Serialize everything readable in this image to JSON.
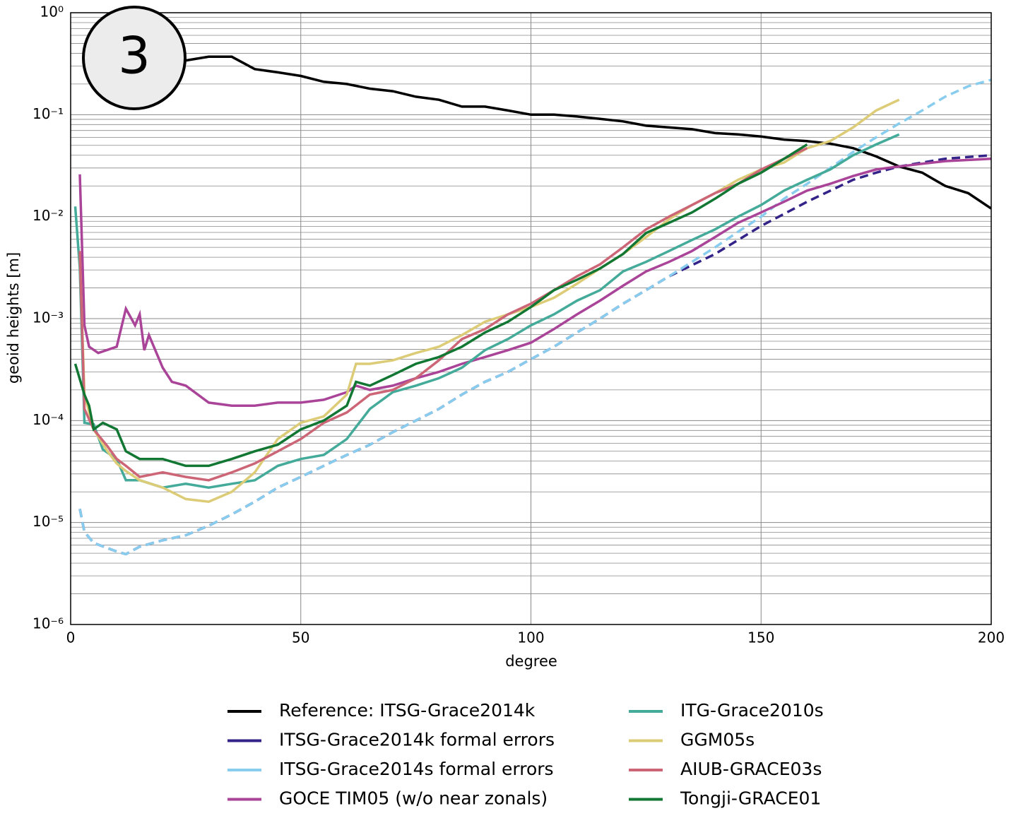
{
  "chart_data": {
    "type": "line",
    "annotation": "3",
    "x_label": "degree",
    "y_label": "geoid heights [m]",
    "xlim": [
      0,
      200
    ],
    "xticks": [
      0,
      50,
      100,
      150,
      200
    ],
    "ylim": [
      1e-06,
      1
    ],
    "yticks": [
      {
        "value": 1e-06,
        "label": "10⁻⁶"
      },
      {
        "value": 1e-05,
        "label": "10⁻⁵"
      },
      {
        "value": 0.0001,
        "label": "10⁻⁴"
      },
      {
        "value": 0.001,
        "label": "10⁻³"
      },
      {
        "value": 0.01,
        "label": "10⁻²"
      },
      {
        "value": 0.1,
        "label": "10⁻¹"
      },
      {
        "value": 1,
        "label": "10⁰"
      }
    ],
    "log_y": true,
    "grid": true,
    "minor_grid": true,
    "legend": "bottom",
    "series": [
      {
        "name": "Reference: ITSG-Grace2014k",
        "color": "#000000",
        "dashed": false,
        "x": [
          25,
          30,
          35,
          40,
          45,
          50,
          55,
          60,
          65,
          70,
          75,
          80,
          85,
          90,
          95,
          100,
          105,
          110,
          115,
          120,
          125,
          130,
          135,
          140,
          145,
          150,
          155,
          160,
          165,
          170,
          175,
          180,
          185,
          190,
          195,
          200
        ],
        "values": [
          0.34,
          0.37,
          0.37,
          0.28,
          0.26,
          0.24,
          0.21,
          0.2,
          0.18,
          0.17,
          0.15,
          0.14,
          0.12,
          0.12,
          0.11,
          0.1,
          0.1,
          0.096,
          0.091,
          0.086,
          0.078,
          0.075,
          0.072,
          0.066,
          0.064,
          0.061,
          0.057,
          0.055,
          0.052,
          0.047,
          0.039,
          0.031,
          0.027,
          0.02,
          0.017,
          0.012
        ]
      },
      {
        "name": "ITSG-Grace2014k formal errors",
        "color": "#332288",
        "dashed": true,
        "x": [
          2,
          3,
          5,
          10,
          12,
          15,
          20,
          25,
          30,
          35,
          40,
          45,
          50,
          55,
          60,
          65,
          70,
          75,
          80,
          85,
          90,
          95,
          100,
          105,
          110,
          115,
          120,
          125,
          130,
          140,
          150,
          160,
          170,
          175,
          180,
          190,
          200
        ],
        "values": [
          1.36e-05,
          8.1e-06,
          6.3e-06,
          5.2e-06,
          4.9e-06,
          5.8e-06,
          6.7e-06,
          7.5e-06,
          9.3e-06,
          1.2e-05,
          1.6e-05,
          2.2e-05,
          2.8e-05,
          3.6e-05,
          4.6e-05,
          5.8e-05,
          7.7e-05,
          0.0001,
          0.00013,
          0.00018,
          0.00024,
          0.0003,
          0.0004,
          0.00053,
          0.00073,
          0.001,
          0.0014,
          0.0019,
          0.0026,
          0.0043,
          0.0081,
          0.014,
          0.023,
          0.027,
          0.031,
          0.037,
          0.04
        ]
      },
      {
        "name": "ITSG-Grace2014s formal errors",
        "color": "#88ccee",
        "dashed": true,
        "x": [
          2,
          3,
          5,
          10,
          12,
          15,
          20,
          25,
          30,
          35,
          40,
          45,
          50,
          55,
          60,
          65,
          70,
          75,
          80,
          85,
          90,
          95,
          100,
          105,
          110,
          115,
          120,
          125,
          130,
          135,
          140,
          145,
          150,
          155,
          160,
          165,
          170,
          175,
          180,
          185,
          190,
          195,
          200
        ],
        "values": [
          1.36e-05,
          8.1e-06,
          6.3e-06,
          5.2e-06,
          4.9e-06,
          5.8e-06,
          6.7e-06,
          7.5e-06,
          9.3e-06,
          1.2e-05,
          1.6e-05,
          2.2e-05,
          2.8e-05,
          3.6e-05,
          4.6e-05,
          5.8e-05,
          7.7e-05,
          0.0001,
          0.00013,
          0.00018,
          0.00024,
          0.0003,
          0.0004,
          0.00053,
          0.00073,
          0.001,
          0.0014,
          0.0019,
          0.0026,
          0.0036,
          0.005,
          0.0071,
          0.01,
          0.015,
          0.021,
          0.03,
          0.043,
          0.06,
          0.082,
          0.11,
          0.15,
          0.19,
          0.22
        ]
      },
      {
        "name": "GOCE TIM05 (w/o near zonals)",
        "color": "#aa4499",
        "dashed": false,
        "x": [
          2,
          3,
          4,
          6,
          10,
          12,
          14,
          15,
          16,
          17,
          20,
          22,
          25,
          30,
          35,
          40,
          45,
          50,
          55,
          60,
          62,
          65,
          70,
          75,
          80,
          85,
          90,
          95,
          100,
          105,
          110,
          115,
          120,
          125,
          130,
          135,
          140,
          145,
          150,
          155,
          160,
          165,
          170,
          175,
          180,
          185,
          190,
          200
        ],
        "values": [
          0.026,
          0.00086,
          0.00053,
          0.00046,
          0.00053,
          0.00125,
          0.00086,
          0.0011,
          0.00049,
          0.00069,
          0.00033,
          0.00024,
          0.00022,
          0.00015,
          0.00014,
          0.00014,
          0.00015,
          0.00015,
          0.00016,
          0.00019,
          0.00022,
          0.0002,
          0.00022,
          0.00026,
          0.0003,
          0.00036,
          0.00042,
          0.00049,
          0.00058,
          0.00079,
          0.0011,
          0.0015,
          0.0021,
          0.0029,
          0.0036,
          0.0046,
          0.0063,
          0.0087,
          0.011,
          0.014,
          0.018,
          0.021,
          0.025,
          0.029,
          0.031,
          0.033,
          0.035,
          0.037
        ]
      },
      {
        "name": "ITG-Grace2010s",
        "color": "#44aa99",
        "dashed": false,
        "x": [
          1,
          2,
          3,
          5,
          7,
          10,
          12,
          15,
          20,
          25,
          30,
          35,
          40,
          45,
          50,
          55,
          60,
          65,
          70,
          75,
          80,
          85,
          90,
          95,
          100,
          105,
          110,
          115,
          120,
          125,
          130,
          135,
          140,
          145,
          150,
          155,
          160,
          165,
          170,
          175,
          180
        ],
        "values": [
          0.0126,
          0.0031,
          9.5e-05,
          9.2e-05,
          5.2e-05,
          4.2e-05,
          2.6e-05,
          2.6e-05,
          2.2e-05,
          2.4e-05,
          2.2e-05,
          2.4e-05,
          2.6e-05,
          3.6e-05,
          4.2e-05,
          4.6e-05,
          6.6e-05,
          0.00013,
          0.00019,
          0.00022,
          0.00026,
          0.00033,
          0.00049,
          0.00063,
          0.00086,
          0.0011,
          0.0015,
          0.0019,
          0.0029,
          0.0036,
          0.0046,
          0.0059,
          0.0075,
          0.01,
          0.013,
          0.018,
          0.023,
          0.029,
          0.04,
          0.051,
          0.064
        ]
      },
      {
        "name": "GGM05s",
        "color": "#ddcc77",
        "dashed": false,
        "x": [
          2,
          3,
          5,
          8,
          10,
          12,
          15,
          20,
          25,
          30,
          35,
          40,
          45,
          50,
          55,
          60,
          62,
          65,
          70,
          75,
          80,
          85,
          90,
          95,
          100,
          105,
          110,
          115,
          120,
          125,
          130,
          135,
          140,
          145,
          150,
          155,
          160,
          165,
          170,
          175,
          180
        ],
        "values": [
          0.0043,
          0.00018,
          8.2e-05,
          5e-05,
          3.8e-05,
          3.2e-05,
          2.6e-05,
          2.2e-05,
          1.7e-05,
          1.6e-05,
          2e-05,
          3.1e-05,
          6.6e-05,
          9.5e-05,
          0.00011,
          0.00018,
          0.00036,
          0.00036,
          0.00039,
          0.00046,
          0.00053,
          0.00069,
          0.00093,
          0.0011,
          0.0013,
          0.0016,
          0.0022,
          0.0031,
          0.0043,
          0.0063,
          0.0094,
          0.013,
          0.017,
          0.023,
          0.029,
          0.034,
          0.047,
          0.055,
          0.075,
          0.11,
          0.14
        ]
      },
      {
        "name": "AIUB-GRACE03s",
        "color": "#cc6677",
        "dashed": false,
        "x": [
          2,
          3,
          5,
          8,
          10,
          12,
          15,
          20,
          25,
          30,
          35,
          40,
          45,
          50,
          55,
          60,
          65,
          70,
          75,
          80,
          85,
          90,
          95,
          100,
          105,
          110,
          115,
          120,
          125,
          130,
          135,
          140,
          145,
          150,
          155,
          160
        ],
        "values": [
          0.0046,
          0.00013,
          8.2e-05,
          5.6e-05,
          4.2e-05,
          3.6e-05,
          2.8e-05,
          3.1e-05,
          2.8e-05,
          2.6e-05,
          3.1e-05,
          3.8e-05,
          5e-05,
          6.6e-05,
          9.5e-05,
          0.00012,
          0.00018,
          0.0002,
          0.00026,
          0.00039,
          0.00063,
          0.00079,
          0.0011,
          0.0014,
          0.0019,
          0.0026,
          0.0034,
          0.005,
          0.0075,
          0.01,
          0.013,
          0.017,
          0.021,
          0.029,
          0.037,
          0.047
        ]
      },
      {
        "name": "Tongji-GRACE01",
        "color": "#117733",
        "dashed": false,
        "x": [
          1,
          3,
          4,
          5,
          7,
          10,
          12,
          15,
          20,
          25,
          30,
          35,
          40,
          45,
          50,
          55,
          60,
          62,
          65,
          70,
          75,
          80,
          85,
          90,
          95,
          100,
          105,
          110,
          115,
          120,
          125,
          130,
          135,
          140,
          145,
          150,
          155,
          160
        ],
        "values": [
          0.00036,
          0.00018,
          0.00014,
          8.2e-05,
          9.5e-05,
          8.2e-05,
          5e-05,
          4.2e-05,
          4.2e-05,
          3.6e-05,
          3.6e-05,
          4.2e-05,
          5e-05,
          5.8e-05,
          8.2e-05,
          0.0001,
          0.00014,
          0.00024,
          0.00022,
          0.00028,
          0.00036,
          0.00042,
          0.00053,
          0.00073,
          0.00093,
          0.0013,
          0.0019,
          0.0024,
          0.0031,
          0.0043,
          0.0069,
          0.0087,
          0.011,
          0.015,
          0.021,
          0.027,
          0.037,
          0.051
        ]
      }
    ]
  }
}
